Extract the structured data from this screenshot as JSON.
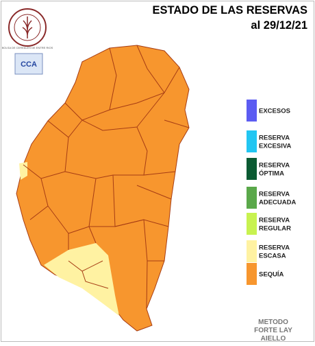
{
  "header": {
    "title": "ESTADO DE LAS RESERVAS",
    "date": "al 29/12/21"
  },
  "logo": {
    "text": "BOLSA DE CEREALES DE ENTRE RIOS",
    "badge": "CCA"
  },
  "legend": {
    "items": [
      {
        "label": [
          "EXCESOS"
        ],
        "color": "#5c5cf2"
      },
      {
        "label": [
          "RESERVA",
          "EXCESIVA"
        ],
        "color": "#22c6f2"
      },
      {
        "label": [
          "RESERVA",
          "ÓPTIMA"
        ],
        "color": "#0b5a32"
      },
      {
        "label": [
          "RESERVA",
          "ADECUADA"
        ],
        "color": "#5aa84a"
      },
      {
        "label": [
          "RESERVA",
          "REGULAR"
        ],
        "color": "#c8f250"
      },
      {
        "label": [
          "RESERVA",
          "ESCASA"
        ],
        "color": "#fff2a2"
      },
      {
        "label": [
          "SEQUÍA"
        ],
        "color": "#f7962e"
      }
    ]
  },
  "method": [
    "METODO",
    "FORTE LAY",
    "AIELLO"
  ]
}
